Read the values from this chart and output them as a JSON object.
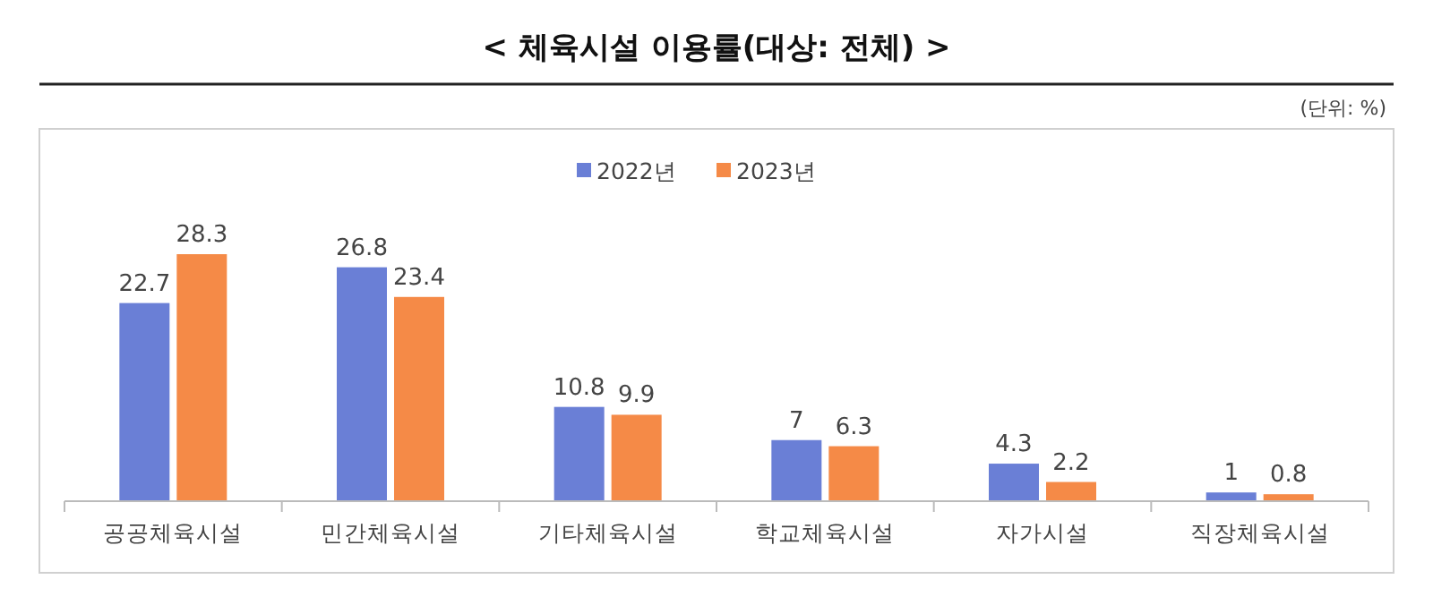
{
  "chart_data": {
    "type": "bar",
    "title": "< 체육시설 이용률(대상: 전체) >",
    "annotations": [
      "(단위: %)"
    ],
    "categories": [
      "공공체육시설",
      "민간체육시설",
      "기타체육시설",
      "학교체육시설",
      "자가시설",
      "직장체육시설"
    ],
    "series": [
      {
        "name": "2022년",
        "color": "#6a7fd6",
        "values": [
          22.7,
          26.8,
          10.8,
          7,
          4.3,
          1
        ]
      },
      {
        "name": "2023년",
        "color": "#f58a47",
        "values": [
          28.3,
          23.4,
          9.9,
          6.3,
          2.2,
          0.8
        ]
      }
    ],
    "data_labels": true,
    "legend": "top"
  }
}
